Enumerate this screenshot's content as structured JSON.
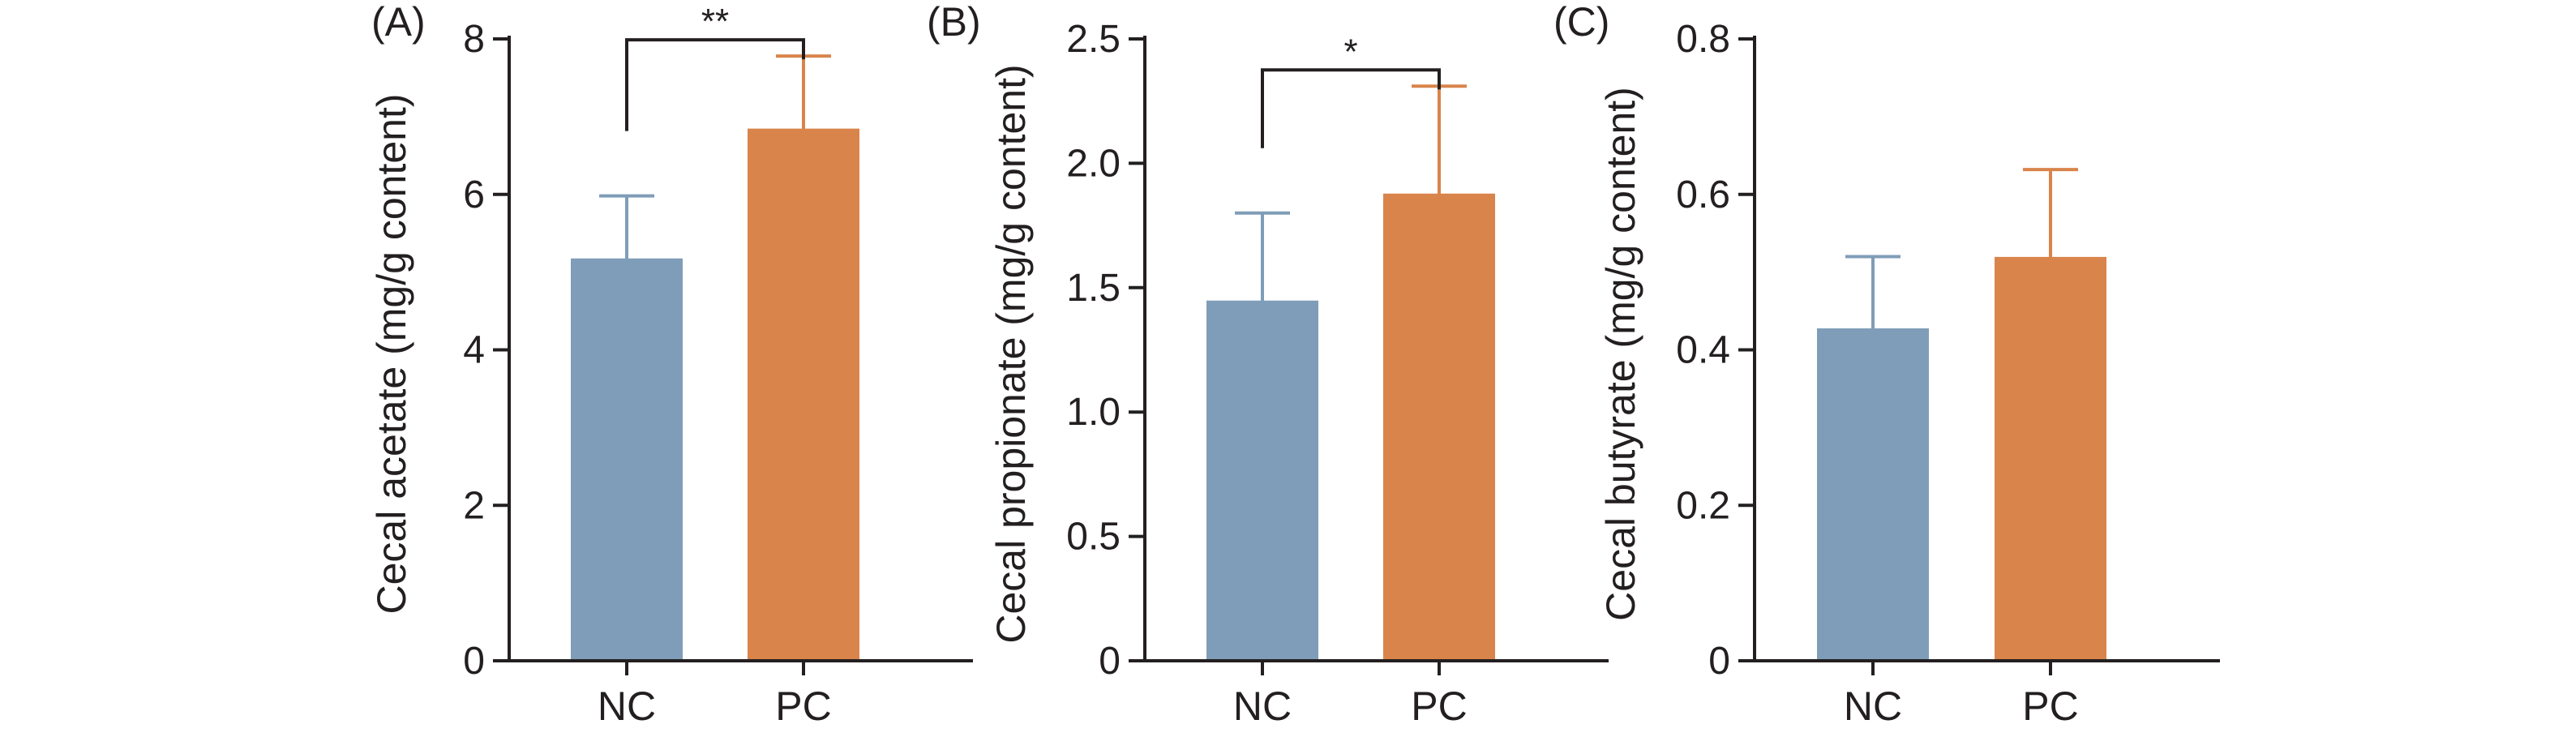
{
  "chart_data": [
    {
      "type": "bar",
      "panel_label": "(A)",
      "categories": [
        "NC",
        "PC"
      ],
      "values": [
        5.15,
        6.82
      ],
      "error": [
        0.83,
        0.96
      ],
      "colors": [
        "#7f9db8",
        "#d9844b"
      ],
      "ylabel": "Cecal acetate (mg/g content)",
      "ylim": [
        0,
        8
      ],
      "yticks": [
        0,
        2,
        4,
        6,
        8
      ],
      "ytick_labels": [
        "0",
        "2",
        "4",
        "6",
        "8"
      ],
      "significance": "**"
    },
    {
      "type": "bar",
      "panel_label": "(B)",
      "categories": [
        "NC",
        "PC"
      ],
      "values": [
        1.44,
        1.87
      ],
      "error": [
        0.36,
        0.44
      ],
      "colors": [
        "#7f9db8",
        "#d9844b"
      ],
      "ylabel": "Cecal propionate (mg/g content)",
      "ylim": [
        0,
        2.5
      ],
      "yticks": [
        0,
        0.5,
        1.0,
        1.5,
        2.0,
        2.5
      ],
      "ytick_labels": [
        "0",
        "0.5",
        "1.0",
        "1.5",
        "2.0",
        "2.5"
      ],
      "significance": "*"
    },
    {
      "type": "bar",
      "panel_label": "(C)",
      "categories": [
        "NC",
        "PC"
      ],
      "values": [
        0.425,
        0.517
      ],
      "error": [
        0.095,
        0.115
      ],
      "colors": [
        "#7f9db8",
        "#d9844b"
      ],
      "ylabel": "Cecal butyrate (mg/g content)",
      "ylim": [
        0,
        0.8
      ],
      "yticks": [
        0,
        0.2,
        0.4,
        0.6,
        0.8
      ],
      "ytick_labels": [
        "0",
        "0.2",
        "0.4",
        "0.6",
        "0.8"
      ],
      "significance": ""
    }
  ]
}
